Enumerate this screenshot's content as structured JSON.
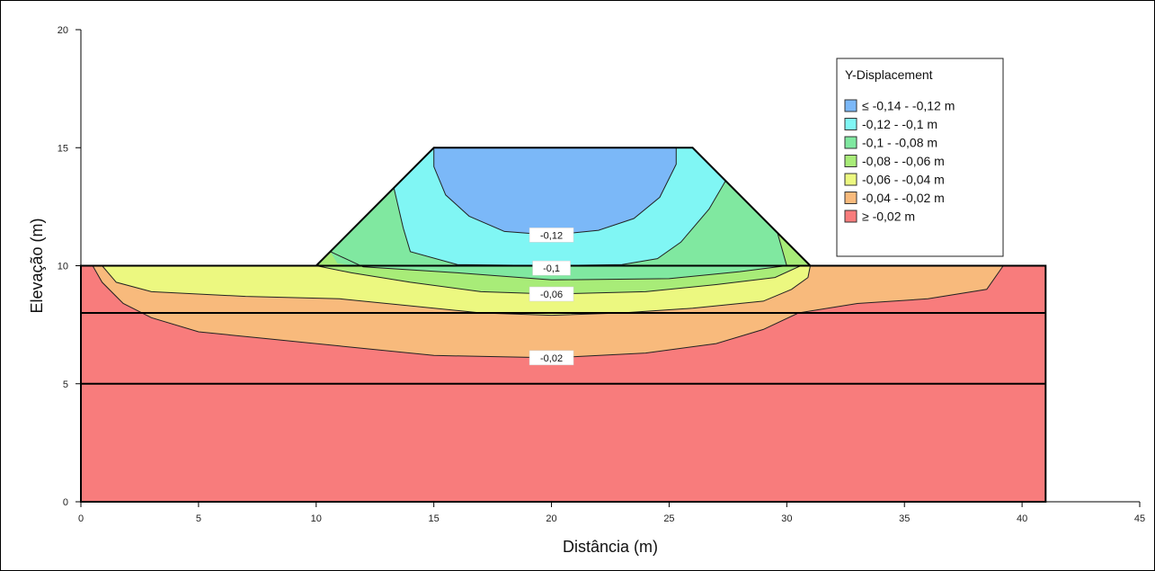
{
  "colors": {
    "band_le_014_012": "#7bb8f8",
    "band_012_010": "#80f6f4",
    "band_010_008": "#80e8a0",
    "band_008_006": "#a8ec78",
    "band_006_004": "#ecf880",
    "band_004_002": "#f8ba7c",
    "band_ge_002": "#f87c7c",
    "line": "#000000"
  },
  "chart_data": {
    "type": "heatmap",
    "subtype": "contour",
    "xlabel": "Distância (m)",
    "ylabel": "Elevação (m)",
    "xlim": [
      0,
      45
    ],
    "ylim": [
      0,
      20
    ],
    "x_ticks": [
      0,
      5,
      10,
      15,
      20,
      25,
      30,
      35,
      40,
      45
    ],
    "y_ticks": [
      0,
      5,
      10,
      15,
      20
    ],
    "grid": false,
    "legend": {
      "title": "Y-Displacement",
      "placement": "top-right",
      "entries": [
        {
          "label": "≤ -0,14 - -0,12 m",
          "color": "#7bb8f8"
        },
        {
          "label": "-0,12 - -0,1 m",
          "color": "#80f6f4"
        },
        {
          "label": "-0,1 - -0,08 m",
          "color": "#80e8a0"
        },
        {
          "label": "-0,08 - -0,06 m",
          "color": "#a8ec78"
        },
        {
          "label": "-0,06 - -0,04 m",
          "color": "#ecf880"
        },
        {
          "label": "-0,04 - -0,02 m",
          "color": "#f8ba7c"
        },
        {
          "label": "≥ -0,02 m",
          "color": "#f87c7c"
        }
      ]
    },
    "geometry": {
      "foundation": [
        [
          0,
          0
        ],
        [
          41,
          0
        ],
        [
          41,
          10
        ],
        [
          0,
          10
        ]
      ],
      "embankment": [
        [
          10,
          10
        ],
        [
          15,
          15
        ],
        [
          26,
          15
        ],
        [
          31,
          10
        ]
      ],
      "layer_boundaries": [
        10,
        8,
        5
      ]
    },
    "regions": [
      {
        "band": "ge_002",
        "color": "#f87c7c",
        "points": [
          [
            0,
            0
          ],
          [
            41,
            0
          ],
          [
            41,
            10
          ],
          [
            0,
            10
          ]
        ]
      },
      {
        "band": "004_002",
        "color": "#f8ba7c",
        "points": [
          [
            0.5,
            10
          ],
          [
            0.9,
            9.3
          ],
          [
            1.8,
            8.4
          ],
          [
            3,
            7.8
          ],
          [
            5,
            7.2
          ],
          [
            8,
            6.9
          ],
          [
            11,
            6.6
          ],
          [
            15,
            6.2
          ],
          [
            20,
            6.1
          ],
          [
            24,
            6.3
          ],
          [
            27,
            6.7
          ],
          [
            29,
            7.3
          ],
          [
            30.5,
            8.0
          ],
          [
            33,
            8.4
          ],
          [
            36,
            8.6
          ],
          [
            38.5,
            9.0
          ],
          [
            39.2,
            10
          ]
        ]
      },
      {
        "band": "006_004",
        "color": "#ecf880",
        "points": [
          [
            0.9,
            10
          ],
          [
            1.5,
            9.3
          ],
          [
            3,
            8.9
          ],
          [
            7,
            8.7
          ],
          [
            11,
            8.6
          ],
          [
            14,
            8.3
          ],
          [
            17,
            8.0
          ],
          [
            20,
            7.9
          ],
          [
            23,
            8.0
          ],
          [
            26,
            8.2
          ],
          [
            29,
            8.5
          ],
          [
            30.2,
            9.0
          ],
          [
            30.9,
            9.5
          ],
          [
            31,
            10
          ]
        ]
      },
      {
        "band": "008_006",
        "color": "#a8ec78",
        "points": [
          [
            10,
            10
          ],
          [
            10.3,
            10.3
          ],
          [
            11,
            11
          ],
          [
            12,
            12
          ],
          [
            13,
            13
          ],
          [
            14,
            14
          ],
          [
            15,
            15
          ],
          [
            26,
            15
          ],
          [
            27,
            14
          ],
          [
            28,
            13
          ],
          [
            29,
            12
          ],
          [
            30,
            11
          ],
          [
            31,
            10
          ],
          [
            30.6,
            10
          ],
          [
            29.5,
            9.5
          ],
          [
            27,
            9.2
          ],
          [
            24,
            8.9
          ],
          [
            20,
            8.8
          ],
          [
            17,
            8.9
          ],
          [
            14,
            9.3
          ],
          [
            11.5,
            9.7
          ]
        ]
      },
      {
        "band": "010_008",
        "color": "#80e8a0",
        "points": [
          [
            10.6,
            10.6
          ],
          [
            11,
            11
          ],
          [
            12,
            12
          ],
          [
            13,
            13
          ],
          [
            14,
            14
          ],
          [
            15,
            15
          ],
          [
            26,
            15
          ],
          [
            27,
            14
          ],
          [
            28,
            13
          ],
          [
            29,
            12
          ],
          [
            29.6,
            11.4
          ],
          [
            30,
            10
          ],
          [
            28,
            9.75
          ],
          [
            25,
            9.45
          ],
          [
            20,
            9.4
          ],
          [
            16,
            9.7
          ],
          [
            12,
            9.95
          ],
          [
            10.9,
            10.1
          ]
        ]
      },
      {
        "band": "012_010",
        "color": "#80f6f4",
        "points": [
          [
            13.3,
            13.3
          ],
          [
            14,
            14
          ],
          [
            15,
            15
          ],
          [
            26,
            15
          ],
          [
            27,
            14
          ],
          [
            27.4,
            13.6
          ],
          [
            26.7,
            12.4
          ],
          [
            25.5,
            11.0
          ],
          [
            24.5,
            10.3
          ],
          [
            23,
            10.05
          ],
          [
            20,
            10
          ],
          [
            16,
            10.05
          ],
          [
            14,
            10.6
          ],
          [
            13.7,
            11.6
          ]
        ]
      },
      {
        "band": "le_014_012",
        "color": "#7bb8f8",
        "points": [
          [
            15,
            15
          ],
          [
            25.3,
            15
          ],
          [
            25.3,
            14.3
          ],
          [
            24.6,
            12.9
          ],
          [
            23.5,
            12.0
          ],
          [
            22,
            11.5
          ],
          [
            20,
            11.3
          ],
          [
            18,
            11.45
          ],
          [
            16.5,
            12.1
          ],
          [
            15.5,
            13.0
          ],
          [
            15,
            14.2
          ]
        ]
      }
    ],
    "contour_lines": [
      {
        "value": -0.12,
        "points": [
          [
            15,
            15
          ],
          [
            15,
            14.2
          ],
          [
            15.5,
            13.0
          ],
          [
            16.5,
            12.1
          ],
          [
            18,
            11.45
          ],
          [
            20,
            11.3
          ],
          [
            22,
            11.5
          ],
          [
            23.5,
            12.0
          ],
          [
            24.6,
            12.9
          ],
          [
            25.3,
            14.3
          ],
          [
            25.3,
            15
          ]
        ]
      },
      {
        "value": -0.1,
        "points": [
          [
            13.3,
            13.3
          ],
          [
            13.7,
            11.6
          ],
          [
            14,
            10.6
          ],
          [
            16,
            10.05
          ],
          [
            20,
            10
          ],
          [
            23,
            10.05
          ],
          [
            24.5,
            10.3
          ],
          [
            25.5,
            11.0
          ],
          [
            26.7,
            12.4
          ],
          [
            27.4,
            13.6
          ]
        ]
      },
      {
        "value": -0.08,
        "points": [
          [
            10.6,
            10.6
          ],
          [
            12,
            9.95
          ],
          [
            16,
            9.7
          ],
          [
            20,
            9.4
          ],
          [
            25,
            9.45
          ],
          [
            28,
            9.75
          ],
          [
            30,
            10
          ],
          [
            29.6,
            11.4
          ]
        ]
      },
      {
        "value": -0.06,
        "points": [
          [
            10,
            10
          ],
          [
            11.5,
            9.7
          ],
          [
            14,
            9.3
          ],
          [
            17,
            8.9
          ],
          [
            20,
            8.8
          ],
          [
            24,
            8.9
          ],
          [
            27,
            9.2
          ],
          [
            29.5,
            9.5
          ],
          [
            30.6,
            10
          ]
        ]
      },
      {
        "value": -0.04,
        "points": [
          [
            0.9,
            10
          ],
          [
            1.5,
            9.3
          ],
          [
            3,
            8.9
          ],
          [
            7,
            8.7
          ],
          [
            11,
            8.6
          ],
          [
            14,
            8.3
          ],
          [
            17,
            8.0
          ],
          [
            20,
            7.9
          ],
          [
            23,
            8.0
          ],
          [
            26,
            8.2
          ],
          [
            29,
            8.5
          ],
          [
            30.2,
            9.0
          ],
          [
            30.9,
            9.5
          ],
          [
            31,
            10
          ]
        ]
      },
      {
        "value": -0.02,
        "points": [
          [
            0.5,
            10
          ],
          [
            0.9,
            9.3
          ],
          [
            1.8,
            8.4
          ],
          [
            3,
            7.8
          ],
          [
            5,
            7.2
          ],
          [
            8,
            6.9
          ],
          [
            11,
            6.6
          ],
          [
            15,
            6.2
          ],
          [
            20,
            6.1
          ],
          [
            24,
            6.3
          ],
          [
            27,
            6.7
          ],
          [
            29,
            7.3
          ],
          [
            30.5,
            8.0
          ],
          [
            33,
            8.4
          ],
          [
            36,
            8.6
          ],
          [
            38.5,
            9.0
          ],
          [
            39.2,
            10
          ]
        ]
      }
    ],
    "contour_labels": [
      {
        "text": "-0,12",
        "x": 20,
        "y": 11.3
      },
      {
        "text": "-0,1",
        "x": 20,
        "y": 9.9
      },
      {
        "text": "-0,06",
        "x": 20,
        "y": 8.8
      },
      {
        "text": "-0,02",
        "x": 20,
        "y": 6.1
      }
    ]
  }
}
